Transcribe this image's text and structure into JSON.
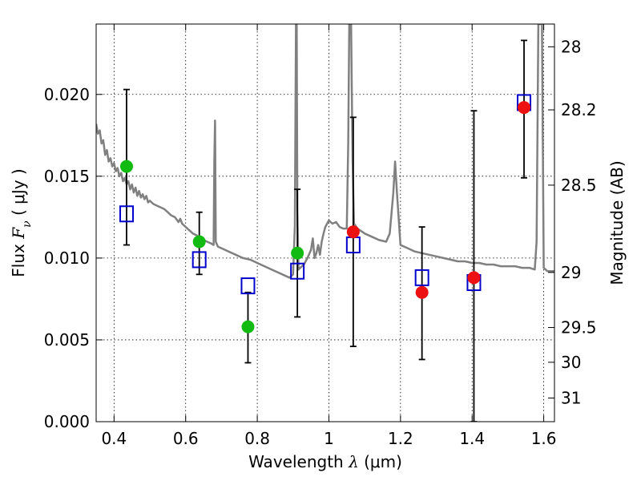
{
  "chart_data": {
    "type": "scatter",
    "xlabel": {
      "prefix": "Wavelength  ",
      "symbol": "λ",
      "unit": " (μm)"
    },
    "ylabel": {
      "prefix": "Flux  ",
      "symbol": "F",
      "subscript": "ν",
      "unit": "  ( μJy )"
    },
    "y2label": "Magnitude (AB)",
    "xlim": [
      0.35,
      1.63
    ],
    "ylim": [
      0.0,
      0.0243
    ],
    "grid": true,
    "grid_style": "dotted",
    "xticks": [
      {
        "value": 0.4,
        "label": "0.4"
      },
      {
        "value": 0.6,
        "label": "0.6"
      },
      {
        "value": 0.8,
        "label": "0.8"
      },
      {
        "value": 1.0,
        "label": "1"
      },
      {
        "value": 1.2,
        "label": "1.2"
      },
      {
        "value": 1.4,
        "label": "1.4"
      },
      {
        "value": 1.6,
        "label": "1.6"
      }
    ],
    "yticks": [
      {
        "value": 0.0,
        "label": "0.000"
      },
      {
        "value": 0.005,
        "label": "0.005"
      },
      {
        "value": 0.01,
        "label": "0.010"
      },
      {
        "value": 0.015,
        "label": "0.015"
      },
      {
        "value": 0.02,
        "label": "0.020"
      }
    ],
    "y2ticks": [
      {
        "mag": 28,
        "label": "28"
      },
      {
        "mag": 28.2,
        "label": "28.2"
      },
      {
        "mag": 28.5,
        "label": "28.5"
      },
      {
        "mag": 29,
        "label": "29"
      },
      {
        "mag": 29.5,
        "label": "29.5"
      },
      {
        "mag": 30,
        "label": "30"
      },
      {
        "mag": 31,
        "label": "31"
      }
    ],
    "colors": {
      "sed": "#808080",
      "model": "#0000cc",
      "green": "#11bb11",
      "red": "#ee1111",
      "errorbar": "#000000"
    },
    "observed_green": [
      {
        "x": 0.435,
        "y": 0.0156,
        "yerr_low": 0.0108,
        "yerr_high": 0.0203
      },
      {
        "x": 0.638,
        "y": 0.011,
        "yerr_low": 0.009,
        "yerr_high": 0.0128
      },
      {
        "x": 0.774,
        "y": 0.0058,
        "yerr_low": 0.0036,
        "yerr_high": 0.0079
      },
      {
        "x": 0.912,
        "y": 0.0103,
        "yerr_low": 0.0064,
        "yerr_high": 0.0142
      }
    ],
    "observed_red": [
      {
        "x": 1.068,
        "y": 0.0116,
        "yerr_low": 0.0046,
        "yerr_high": 0.0186
      },
      {
        "x": 1.26,
        "y": 0.0079,
        "yerr_low": 0.0038,
        "yerr_high": 0.0119
      },
      {
        "x": 1.405,
        "y": 0.0088,
        "yerr_low": 0.0,
        "yerr_high": 0.019
      },
      {
        "x": 1.545,
        "y": 0.0192,
        "yerr_low": 0.0149,
        "yerr_high": 0.0233
      }
    ],
    "model_points": [
      {
        "x": 0.435,
        "y": 0.0127
      },
      {
        "x": 0.638,
        "y": 0.0099
      },
      {
        "x": 0.774,
        "y": 0.0083
      },
      {
        "x": 0.912,
        "y": 0.0092
      },
      {
        "x": 1.068,
        "y": 0.0108
      },
      {
        "x": 1.26,
        "y": 0.0088
      },
      {
        "x": 1.405,
        "y": 0.0085
      },
      {
        "x": 1.545,
        "y": 0.0195
      }
    ],
    "sed_curve": [
      [
        0.35,
        0.0182
      ],
      [
        0.355,
        0.0176
      ],
      [
        0.36,
        0.0178
      ],
      [
        0.365,
        0.017
      ],
      [
        0.37,
        0.0172
      ],
      [
        0.375,
        0.0163
      ],
      [
        0.38,
        0.0166
      ],
      [
        0.385,
        0.0159
      ],
      [
        0.39,
        0.0161
      ],
      [
        0.395,
        0.0156
      ],
      [
        0.4,
        0.0158
      ],
      [
        0.405,
        0.0153
      ],
      [
        0.41,
        0.0155
      ],
      [
        0.415,
        0.015
      ],
      [
        0.42,
        0.0152
      ],
      [
        0.425,
        0.0147
      ],
      [
        0.43,
        0.0149
      ],
      [
        0.435,
        0.0145
      ],
      [
        0.44,
        0.0147
      ],
      [
        0.445,
        0.0142
      ],
      [
        0.45,
        0.0145
      ],
      [
        0.455,
        0.014
      ],
      [
        0.46,
        0.0143
      ],
      [
        0.465,
        0.0138
      ],
      [
        0.47,
        0.0141
      ],
      [
        0.475,
        0.0137
      ],
      [
        0.48,
        0.0139
      ],
      [
        0.485,
        0.0136
      ],
      [
        0.49,
        0.0138
      ],
      [
        0.495,
        0.0134
      ],
      [
        0.5,
        0.0135
      ],
      [
        0.51,
        0.0133
      ],
      [
        0.52,
        0.0132
      ],
      [
        0.53,
        0.0131
      ],
      [
        0.54,
        0.013
      ],
      [
        0.55,
        0.0128
      ],
      [
        0.56,
        0.0126
      ],
      [
        0.57,
        0.0125
      ],
      [
        0.58,
        0.0122
      ],
      [
        0.585,
        0.0124
      ],
      [
        0.59,
        0.0121
      ],
      [
        0.6,
        0.0119
      ],
      [
        0.61,
        0.0117
      ],
      [
        0.62,
        0.0115
      ],
      [
        0.63,
        0.0114
      ],
      [
        0.64,
        0.0112
      ],
      [
        0.65,
        0.0111
      ],
      [
        0.66,
        0.011
      ],
      [
        0.67,
        0.0109
      ],
      [
        0.678,
        0.0108
      ],
      [
        0.68,
        0.016
      ],
      [
        0.682,
        0.0184
      ],
      [
        0.684,
        0.011
      ],
      [
        0.69,
        0.0107
      ],
      [
        0.7,
        0.0106
      ],
      [
        0.72,
        0.0104
      ],
      [
        0.74,
        0.0102
      ],
      [
        0.76,
        0.01
      ],
      [
        0.78,
        0.0099
      ],
      [
        0.8,
        0.0097
      ],
      [
        0.82,
        0.0095
      ],
      [
        0.84,
        0.0093
      ],
      [
        0.86,
        0.0091
      ],
      [
        0.88,
        0.0089
      ],
      [
        0.89,
        0.0088
      ],
      [
        0.9,
        0.009
      ],
      [
        0.905,
        0.012
      ],
      [
        0.908,
        0.0243
      ],
      [
        0.91,
        0.0243
      ],
      [
        0.912,
        0.013
      ],
      [
        0.915,
        0.0093
      ],
      [
        0.92,
        0.0094
      ],
      [
        0.93,
        0.0096
      ],
      [
        0.94,
        0.01
      ],
      [
        0.95,
        0.0105
      ],
      [
        0.955,
        0.0112
      ],
      [
        0.96,
        0.01
      ],
      [
        0.965,
        0.0103
      ],
      [
        0.97,
        0.0108
      ],
      [
        0.975,
        0.0102
      ],
      [
        0.98,
        0.011
      ],
      [
        0.985,
        0.0115
      ],
      [
        0.99,
        0.0119
      ],
      [
        0.995,
        0.0121
      ],
      [
        1.0,
        0.0123
      ],
      [
        1.01,
        0.0121
      ],
      [
        1.02,
        0.0122
      ],
      [
        1.03,
        0.0119
      ],
      [
        1.04,
        0.0118
      ],
      [
        1.05,
        0.0118
      ],
      [
        1.054,
        0.017
      ],
      [
        1.057,
        0.0243
      ],
      [
        1.062,
        0.0243
      ],
      [
        1.066,
        0.016
      ],
      [
        1.07,
        0.0121
      ],
      [
        1.08,
        0.0118
      ],
      [
        1.1,
        0.0115
      ],
      [
        1.12,
        0.0113
      ],
      [
        1.14,
        0.0111
      ],
      [
        1.16,
        0.011
      ],
      [
        1.17,
        0.0115
      ],
      [
        1.18,
        0.014
      ],
      [
        1.185,
        0.0159
      ],
      [
        1.19,
        0.014
      ],
      [
        1.2,
        0.0108
      ],
      [
        1.22,
        0.0106
      ],
      [
        1.24,
        0.0104
      ],
      [
        1.26,
        0.0103
      ],
      [
        1.28,
        0.0102
      ],
      [
        1.3,
        0.0101
      ],
      [
        1.32,
        0.01
      ],
      [
        1.34,
        0.0099
      ],
      [
        1.36,
        0.0098
      ],
      [
        1.38,
        0.0098
      ],
      [
        1.4,
        0.0097
      ],
      [
        1.42,
        0.0097
      ],
      [
        1.44,
        0.0096
      ],
      [
        1.46,
        0.0096
      ],
      [
        1.48,
        0.0095
      ],
      [
        1.5,
        0.0095
      ],
      [
        1.52,
        0.0095
      ],
      [
        1.54,
        0.0094
      ],
      [
        1.56,
        0.0094
      ],
      [
        1.575,
        0.0093
      ],
      [
        1.58,
        0.011
      ],
      [
        1.585,
        0.0243
      ],
      [
        1.595,
        0.0243
      ],
      [
        1.6,
        0.0094
      ],
      [
        1.61,
        0.0092
      ],
      [
        1.63,
        0.0092
      ]
    ]
  }
}
